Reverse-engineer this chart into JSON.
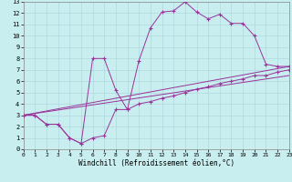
{
  "xlabel": "Windchill (Refroidissement éolien,°C)",
  "bg_color": "#c8eef0",
  "grid_color": "#b0d8dc",
  "line_color": "#993399",
  "xlim": [
    0,
    23
  ],
  "ylim": [
    0,
    13
  ],
  "xticks": [
    0,
    1,
    2,
    3,
    4,
    5,
    6,
    7,
    8,
    9,
    10,
    11,
    12,
    13,
    14,
    15,
    16,
    17,
    18,
    19,
    20,
    21,
    22,
    23
  ],
  "yticks": [
    0,
    1,
    2,
    3,
    4,
    5,
    6,
    7,
    8,
    9,
    10,
    11,
    12,
    13
  ],
  "curve1_x": [
    0,
    1,
    2,
    3,
    4,
    5,
    6,
    7,
    8,
    9,
    10,
    11,
    12,
    13,
    14,
    15,
    16,
    17,
    18,
    19,
    20,
    21,
    22,
    23
  ],
  "curve1_y": [
    3.0,
    3.0,
    2.2,
    2.2,
    1.0,
    0.5,
    8.0,
    8.0,
    5.2,
    3.5,
    7.8,
    10.7,
    12.1,
    12.2,
    13.0,
    12.1,
    11.5,
    11.9,
    11.1,
    11.1,
    10.0,
    7.5,
    7.3,
    7.3
  ],
  "curve2_x": [
    0,
    1,
    2,
    3,
    4,
    5,
    6,
    7,
    8,
    9,
    10,
    11,
    12,
    13,
    14,
    15,
    16,
    17,
    18,
    19,
    20,
    21,
    22,
    23
  ],
  "curve2_y": [
    3.0,
    3.0,
    2.2,
    2.2,
    1.0,
    0.5,
    1.0,
    1.2,
    3.5,
    3.5,
    4.0,
    4.2,
    4.5,
    4.7,
    5.0,
    5.3,
    5.5,
    5.8,
    6.0,
    6.2,
    6.5,
    6.5,
    6.8,
    7.0
  ],
  "line1_x": [
    0,
    23
  ],
  "line1_y": [
    3.0,
    6.5
  ],
  "line2_x": [
    0,
    23
  ],
  "line2_y": [
    3.0,
    7.3
  ]
}
